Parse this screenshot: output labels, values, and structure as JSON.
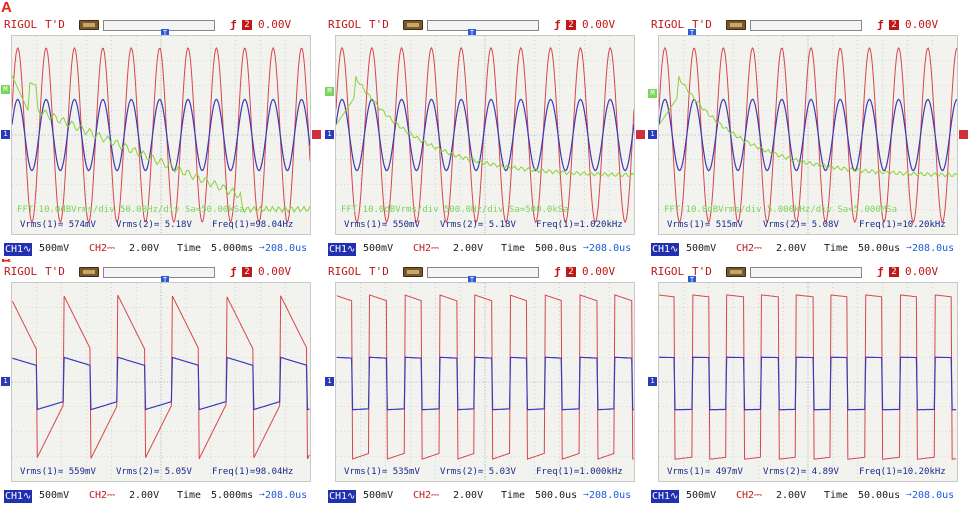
{
  "sections": [
    "A",
    "B"
  ],
  "common": {
    "brand": "RIGOL",
    "mode": "T'D",
    "trigger_edge": "ƒ",
    "trigger_channel": "2",
    "trigger_level": "0.00V",
    "trigger_marker": "T",
    "ch1_marker": "1",
    "fft_marker": "M",
    "ch1_footer": "CH1∿",
    "ch1_scale": "500mV",
    "ch2_footer": "CH2⎓",
    "ch2_scale": "2.00V",
    "time_label": "Time",
    "trig_offset": "➙208.0us"
  },
  "colors": {
    "ch1": "#3a3ab8",
    "ch2": "#d8454a",
    "math": "#8ad23a",
    "screen_bg": "#f2f2ee",
    "grid": "#b8b8b8"
  },
  "scopes": [
    {
      "id": "a1",
      "row": "A",
      "vrms1": "Vrms(1)= 574mV",
      "vrms2": "Vrms(2)= 5.18V",
      "freq": "Freq(1)=98.04Hz",
      "timebase": "5.000ms",
      "fft": "FFT 10.0dBVrms/div 50.00Hz/div  Sa=50.00kSa"
    },
    {
      "id": "a2",
      "row": "A",
      "vrms1": "Vrms(1)= 550mV",
      "vrms2": "Vrms(2)= 5.18V",
      "freq": "Freq(1)=1.020kHz",
      "timebase": "500.0us",
      "fft": "FFT 10.0dBVrms/div 500.0Hz/div  Sa=500.0kSa"
    },
    {
      "id": "a3",
      "row": "A",
      "vrms1": "Vrms(1)= 515mV",
      "vrms2": "Vrms(2)= 5.08V",
      "freq": "Freq(1)=10.20kHz",
      "timebase": "50.00us",
      "fft": "FFT 10.0dBVrms/div 5.000kHz/div  Sa=5.000MSa"
    },
    {
      "id": "b1",
      "row": "B",
      "vrms1": "Vrms(1)= 559mV",
      "vrms2": "Vrms(2)= 5.05V",
      "freq": "Freq(1)=98.04Hz",
      "timebase": "5.000ms"
    },
    {
      "id": "b2",
      "row": "B",
      "vrms1": "Vrms(1)= 535mV",
      "vrms2": "Vrms(2)= 5.03V",
      "freq": "Freq(1)=1.000kHz",
      "timebase": "500.0us"
    },
    {
      "id": "b3",
      "row": "B",
      "vrms1": "Vrms(1)= 497mV",
      "vrms2": "Vrms(2)= 4.89V",
      "freq": "Freq(1)=10.20kHz",
      "timebase": "50.00us"
    }
  ]
}
